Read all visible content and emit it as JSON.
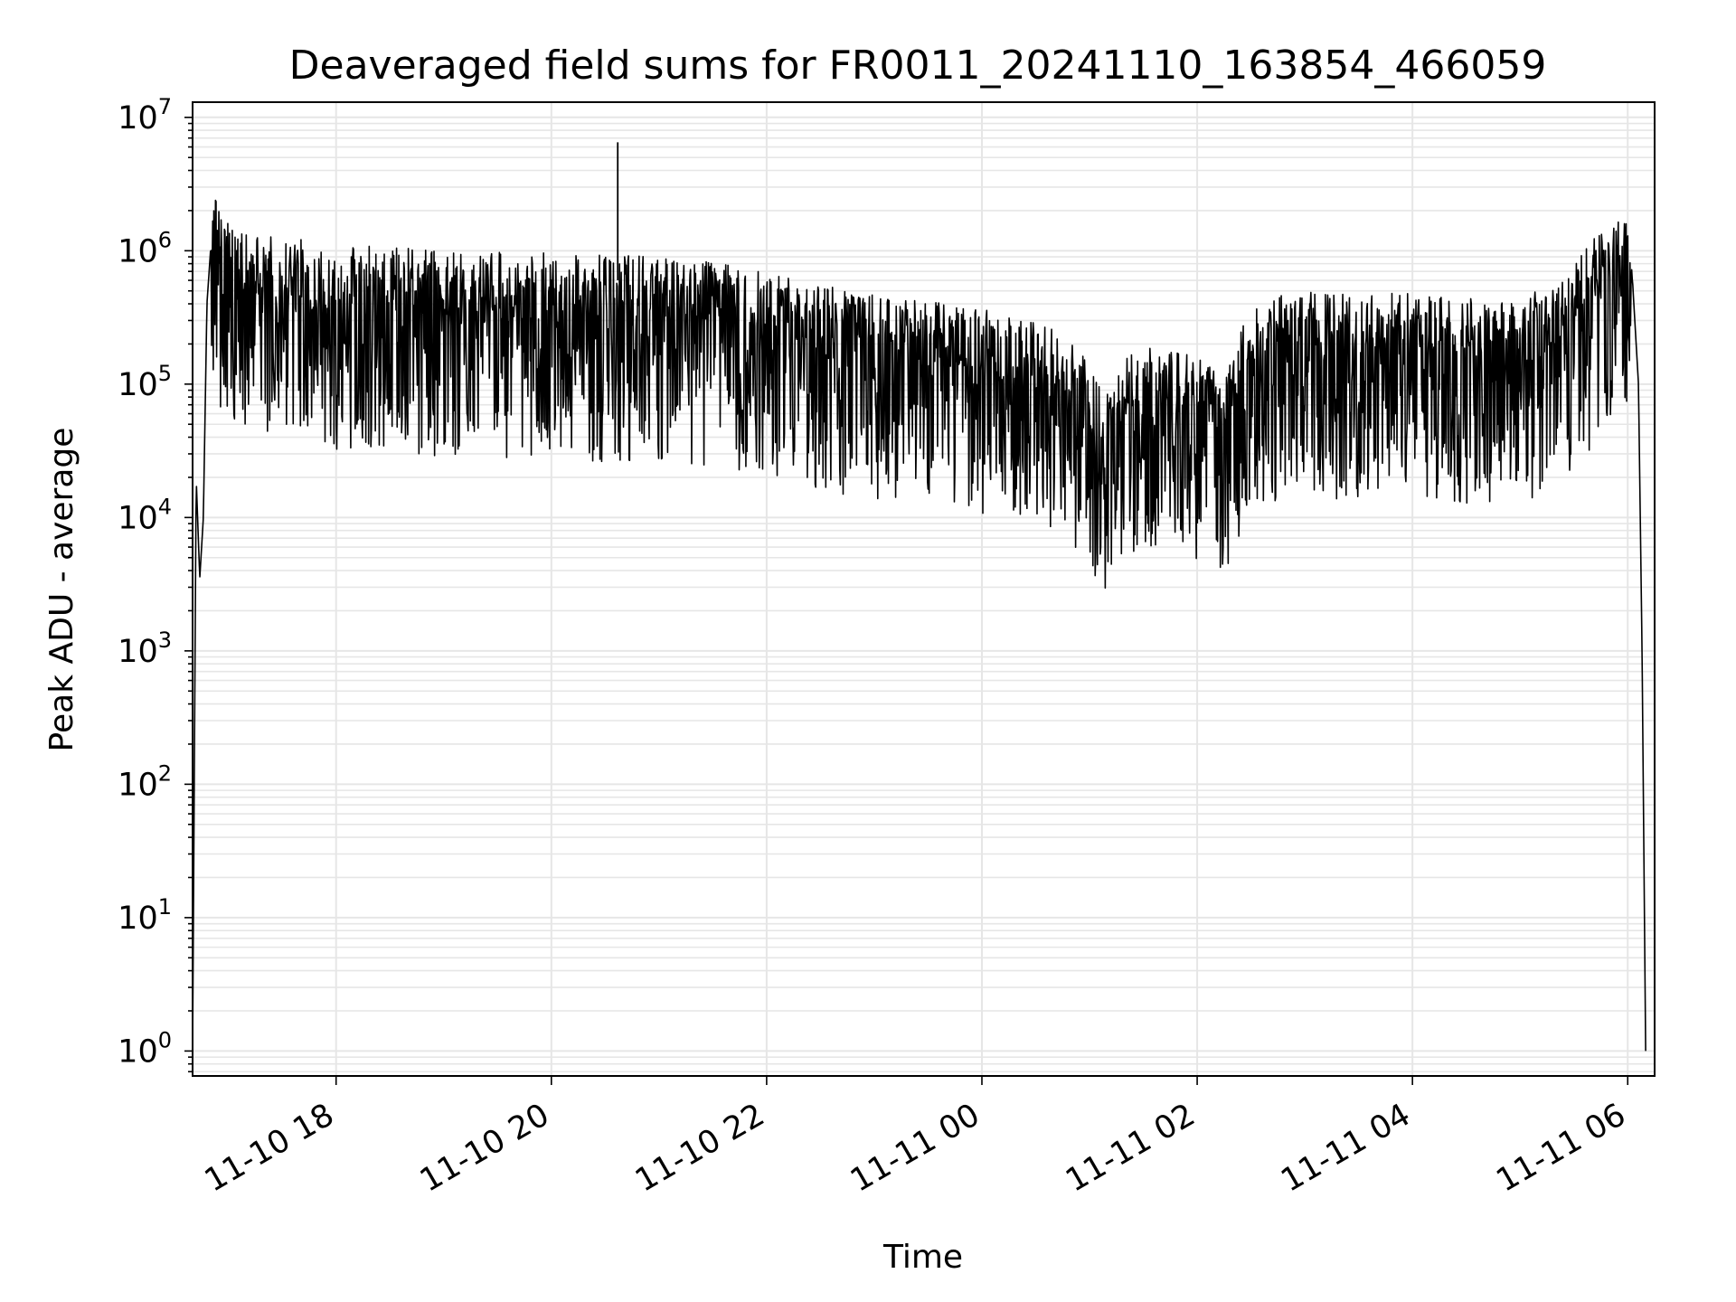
{
  "chart_data": {
    "type": "line",
    "title": "Deaveraged field sums for FR0011_20241110_163854_466059",
    "xlabel": "Time",
    "ylabel": "Peak ADU - average",
    "yscale": "log",
    "ylim": [
      0.65,
      13000000
    ],
    "xlim": [
      "2024-11-10 16:40",
      "2024-11-11 06:15"
    ],
    "grid": true,
    "x_ticks": [
      "11-10 18",
      "11-10 20",
      "11-10 22",
      "11-11 00",
      "11-11 02",
      "11-11 04",
      "11-11 06"
    ],
    "y_ticks": [
      {
        "base": "10",
        "exp": "0"
      },
      {
        "base": "10",
        "exp": "1"
      },
      {
        "base": "10",
        "exp": "2"
      },
      {
        "base": "10",
        "exp": "3"
      },
      {
        "base": "10",
        "exp": "4"
      },
      {
        "base": "10",
        "exp": "5"
      },
      {
        "base": "10",
        "exp": "6"
      },
      {
        "base": "10",
        "exp": "7"
      }
    ],
    "series": [
      {
        "color": "#000000",
        "x": [
          "2024-11-10 16:40",
          "2024-11-10 16:42",
          "2024-11-10 16:44",
          "2024-11-10 16:46",
          "2024-11-10 16:48",
          "2024-11-10 16:50",
          "2024-11-10 16:55",
          "2024-11-10 17:00",
          "2024-11-10 17:10",
          "2024-11-10 17:30",
          "2024-11-10 18:00",
          "2024-11-10 18:30",
          "2024-11-10 19:00",
          "2024-11-10 19:30",
          "2024-11-10 20:00",
          "2024-11-10 20:30",
          "2024-11-10 21:00",
          "2024-11-10 21:30",
          "2024-11-10 22:00",
          "2024-11-10 22:30",
          "2024-11-10 23:00",
          "2024-11-10 23:30",
          "2024-11-11 00:00",
          "2024-11-11 00:30",
          "2024-11-11 00:50",
          "2024-11-11 01:10",
          "2024-11-11 01:20",
          "2024-11-11 01:40",
          "2024-11-11 02:00",
          "2024-11-11 02:15",
          "2024-11-11 02:30",
          "2024-11-11 03:00",
          "2024-11-11 03:30",
          "2024-11-11 04:00",
          "2024-11-11 04:30",
          "2024-11-11 05:00",
          "2024-11-11 05:15",
          "2024-11-11 05:30",
          "2024-11-11 05:45",
          "2024-11-11 06:00",
          "2024-11-11 06:03",
          "2024-11-11 06:06",
          "2024-11-11 06:08",
          "2024-11-11 06:10"
        ],
        "y": [
          1,
          20000,
          3500,
          10000,
          400000,
          1000000,
          800000,
          600000,
          500000,
          450000,
          400000,
          380000,
          350000,
          350000,
          340000,
          330000,
          320000,
          300000,
          250000,
          200000,
          170000,
          150000,
          130000,
          110000,
          80000,
          30000,
          60000,
          70000,
          60000,
          40000,
          150000,
          180000,
          170000,
          170000,
          160000,
          150000,
          200000,
          300000,
          500000,
          700000,
          500000,
          100000,
          1000,
          1
        ]
      }
    ]
  }
}
